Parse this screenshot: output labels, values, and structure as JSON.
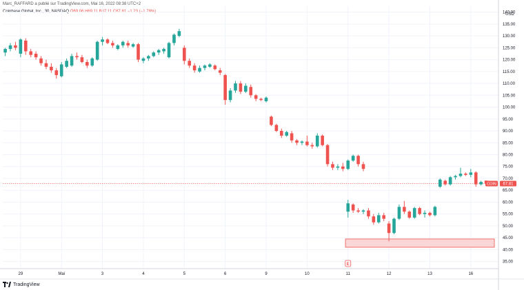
{
  "header": {
    "text": "Marc_RAFFARD a publié sur TradingView.com, Mai 16, 2022 08:38 UTC+2"
  },
  "legend": {
    "symbol": "Coinbase Global, Inc., 30, NASDAQ",
    "values": "O69.06 H69.11 B67.11 C67.81 −1.23 (−1.78%)"
  },
  "footer": {
    "brand": "TradingView"
  },
  "colors": {
    "up": "#26a69a",
    "down": "#ef5350",
    "zone_fill": "#fbd6d6",
    "zone_stroke": "#ef5350",
    "grid": "#f0f3fa"
  },
  "chart_data": {
    "type": "candlestick",
    "currency_label": "USD",
    "y_ticks": [
      35,
      40,
      45,
      50,
      55,
      60,
      65,
      70,
      75,
      80,
      85,
      90,
      95,
      100,
      105,
      110,
      115,
      120,
      125,
      130,
      135,
      140
    ],
    "y_tick_labels": [
      "35.00",
      "40.00",
      "45.00",
      "50.00",
      "55.00",
      "60.00",
      "65.00",
      "70.00",
      "75.00",
      "80.00",
      "85.00",
      "90.00",
      "95.00",
      "100.00",
      "105.00",
      "110.00",
      "115.00",
      "120.00",
      "125.00",
      "130.00",
      "135.00",
      "140.00"
    ],
    "ylim": [
      32,
      142.5
    ],
    "x_ticks": [
      {
        "label": "29",
        "index": 3
      },
      {
        "label": "Mai",
        "index": 11
      },
      {
        "label": "3",
        "index": 19
      },
      {
        "label": "4",
        "index": 27
      },
      {
        "label": "5",
        "index": 35
      },
      {
        "label": "6",
        "index": 43
      },
      {
        "label": "9",
        "index": 51
      },
      {
        "label": "10",
        "index": 59
      },
      {
        "label": "11",
        "index": 67
      },
      {
        "label": "12",
        "index": 75
      },
      {
        "label": "13",
        "index": 83
      },
      {
        "label": "16",
        "index": 91
      }
    ],
    "last_price": {
      "ticker": "COIN",
      "value": "67.81",
      "price": 67.81
    },
    "zone": {
      "low": 41,
      "high": 44.5,
      "from_index": 66.5,
      "to_index": 96
    },
    "event_marker": {
      "label": "E",
      "index": 67
    },
    "candles": [
      {
        "i": 0,
        "o": 123,
        "h": 125,
        "l": 121.5,
        "c": 124.5
      },
      {
        "i": 1,
        "o": 124.5,
        "h": 127,
        "l": 123.5,
        "c": 126
      },
      {
        "i": 2,
        "o": 126,
        "h": 127.5,
        "l": 124,
        "c": 125
      },
      {
        "i": 3,
        "o": 122.5,
        "h": 129,
        "l": 121,
        "c": 128.5
      },
      {
        "i": 4,
        "o": 128,
        "h": 129,
        "l": 122,
        "c": 123.5
      },
      {
        "i": 5,
        "o": 123.5,
        "h": 124.5,
        "l": 121,
        "c": 122
      },
      {
        "i": 6,
        "o": 122.5,
        "h": 123.5,
        "l": 120,
        "c": 121
      },
      {
        "i": 7,
        "o": 120.5,
        "h": 121.5,
        "l": 117.5,
        "c": 118.5
      },
      {
        "i": 8,
        "o": 118.5,
        "h": 120,
        "l": 116,
        "c": 117
      },
      {
        "i": 9,
        "o": 117,
        "h": 118.5,
        "l": 114.5,
        "c": 115.5
      },
      {
        "i": 10,
        "o": 115.5,
        "h": 116.5,
        "l": 112,
        "c": 113.5
      },
      {
        "i": 11,
        "o": 113,
        "h": 119,
        "l": 112.5,
        "c": 118
      },
      {
        "i": 12,
        "o": 117,
        "h": 120.5,
        "l": 116.5,
        "c": 119.5
      },
      {
        "i": 13,
        "o": 117.5,
        "h": 122.5,
        "l": 117,
        "c": 121.5
      },
      {
        "i": 14,
        "o": 121.5,
        "h": 123,
        "l": 120,
        "c": 121
      },
      {
        "i": 15,
        "o": 121,
        "h": 122,
        "l": 118.5,
        "c": 119
      },
      {
        "i": 16,
        "o": 119,
        "h": 120,
        "l": 116.5,
        "c": 117.5
      },
      {
        "i": 17,
        "o": 117.5,
        "h": 121,
        "l": 117,
        "c": 120.5
      },
      {
        "i": 18,
        "o": 120,
        "h": 128,
        "l": 119.5,
        "c": 127.5
      },
      {
        "i": 19,
        "o": 127.5,
        "h": 129.5,
        "l": 126,
        "c": 128.5
      },
      {
        "i": 20,
        "o": 128.5,
        "h": 129,
        "l": 126.5,
        "c": 127
      },
      {
        "i": 21,
        "o": 127,
        "h": 128,
        "l": 125,
        "c": 126
      },
      {
        "i": 22,
        "o": 124.5,
        "h": 126.5,
        "l": 124,
        "c": 126
      },
      {
        "i": 23,
        "o": 126,
        "h": 128,
        "l": 125,
        "c": 127.5
      },
      {
        "i": 24,
        "o": 127,
        "h": 128,
        "l": 125,
        "c": 126
      },
      {
        "i": 25,
        "o": 125.5,
        "h": 127,
        "l": 125,
        "c": 126.5
      },
      {
        "i": 26,
        "o": 126.5,
        "h": 127,
        "l": 119,
        "c": 120
      },
      {
        "i": 27,
        "o": 119.5,
        "h": 121,
        "l": 118.5,
        "c": 120.5
      },
      {
        "i": 28,
        "o": 120.5,
        "h": 122,
        "l": 119.5,
        "c": 121.5
      },
      {
        "i": 29,
        "o": 121.5,
        "h": 123.5,
        "l": 121,
        "c": 123
      },
      {
        "i": 30,
        "o": 123,
        "h": 124.5,
        "l": 122,
        "c": 124
      },
      {
        "i": 31,
        "o": 123.5,
        "h": 125,
        "l": 122.5,
        "c": 124.5
      },
      {
        "i": 32,
        "o": 121,
        "h": 127.5,
        "l": 120.5,
        "c": 127
      },
      {
        "i": 33,
        "o": 127,
        "h": 131,
        "l": 126,
        "c": 130.5
      },
      {
        "i": 34,
        "o": 130,
        "h": 133,
        "l": 129.5,
        "c": 132
      },
      {
        "i": 35,
        "o": 125,
        "h": 126,
        "l": 118,
        "c": 119.5
      },
      {
        "i": 36,
        "o": 119.5,
        "h": 120.5,
        "l": 116.5,
        "c": 117.5
      },
      {
        "i": 37,
        "o": 117.5,
        "h": 118.5,
        "l": 114.5,
        "c": 115.5
      },
      {
        "i": 38,
        "o": 115,
        "h": 117.5,
        "l": 114.5,
        "c": 116.5
      },
      {
        "i": 39,
        "o": 116.5,
        "h": 118,
        "l": 115.5,
        "c": 117.5
      },
      {
        "i": 40,
        "o": 117,
        "h": 118.5,
        "l": 116.5,
        "c": 118
      },
      {
        "i": 41,
        "o": 117.5,
        "h": 118,
        "l": 115.5,
        "c": 116
      },
      {
        "i": 42,
        "o": 115.5,
        "h": 116.5,
        "l": 113.5,
        "c": 114.5
      },
      {
        "i": 43,
        "o": 113.5,
        "h": 114,
        "l": 101,
        "c": 103
      },
      {
        "i": 44,
        "o": 103,
        "h": 108,
        "l": 102,
        "c": 107
      },
      {
        "i": 45,
        "o": 107,
        "h": 111,
        "l": 106,
        "c": 110
      },
      {
        "i": 46,
        "o": 110,
        "h": 111,
        "l": 105.5,
        "c": 106.5
      },
      {
        "i": 47,
        "o": 106.5,
        "h": 110,
        "l": 106,
        "c": 109
      },
      {
        "i": 48,
        "o": 108.5,
        "h": 109.5,
        "l": 104,
        "c": 105
      },
      {
        "i": 49,
        "o": 105,
        "h": 105.5,
        "l": 102.5,
        "c": 103.5
      },
      {
        "i": 50,
        "o": 103.5,
        "h": 104,
        "l": 102.5,
        "c": 103
      },
      {
        "i": 51,
        "o": 102.5,
        "h": 104.5,
        "l": 102,
        "c": 104
      },
      {
        "i": 52,
        "o": 96,
        "h": 96.5,
        "l": 92,
        "c": 92.5
      },
      {
        "i": 53,
        "o": 92.5,
        "h": 93,
        "l": 89.5,
        "c": 90
      },
      {
        "i": 54,
        "o": 90,
        "h": 91,
        "l": 87,
        "c": 88
      },
      {
        "i": 55,
        "o": 88,
        "h": 90,
        "l": 87.5,
        "c": 89.5
      },
      {
        "i": 56,
        "o": 89,
        "h": 90,
        "l": 85,
        "c": 86
      },
      {
        "i": 57,
        "o": 86,
        "h": 86.5,
        "l": 84,
        "c": 85
      },
      {
        "i": 58,
        "o": 85,
        "h": 86,
        "l": 84,
        "c": 85.5
      },
      {
        "i": 59,
        "o": 85.5,
        "h": 88,
        "l": 83.5,
        "c": 84
      },
      {
        "i": 60,
        "o": 84,
        "h": 85,
        "l": 82.5,
        "c": 83.5
      },
      {
        "i": 61,
        "o": 83.5,
        "h": 89,
        "l": 83,
        "c": 88
      },
      {
        "i": 62,
        "o": 88,
        "h": 88.5,
        "l": 83.5,
        "c": 84
      },
      {
        "i": 63,
        "o": 84,
        "h": 84.5,
        "l": 75,
        "c": 76
      },
      {
        "i": 64,
        "o": 76,
        "h": 77,
        "l": 73.5,
        "c": 74.5
      },
      {
        "i": 65,
        "o": 74.5,
        "h": 76,
        "l": 73.5,
        "c": 75
      },
      {
        "i": 66,
        "o": 75,
        "h": 76.5,
        "l": 73,
        "c": 74
      },
      {
        "i": 67,
        "o": 74,
        "h": 78,
        "l": 73.5,
        "c": 77.5
      },
      {
        "i": 68,
        "o": 77.5,
        "h": 80,
        "l": 77,
        "c": 79.5
      },
      {
        "i": 69,
        "o": 79.5,
        "h": 80,
        "l": 75,
        "c": 76
      },
      {
        "i": 70,
        "o": 76,
        "h": 77,
        "l": 73,
        "c": 74
      }
    ],
    "candles_b": [
      {
        "i": 67,
        "o": 56,
        "h": 61,
        "l": 53.5,
        "c": 59.5
      },
      {
        "i": 68,
        "o": 59,
        "h": 59.5,
        "l": 55.5,
        "c": 56.5
      },
      {
        "i": 69,
        "o": 56.5,
        "h": 57.5,
        "l": 55.5,
        "c": 56
      },
      {
        "i": 70,
        "o": 56,
        "h": 57,
        "l": 55,
        "c": 56.5
      },
      {
        "i": 71,
        "o": 56.5,
        "h": 57.5,
        "l": 53,
        "c": 54
      },
      {
        "i": 72,
        "o": 54,
        "h": 55,
        "l": 50.5,
        "c": 51.5
      },
      {
        "i": 73,
        "o": 51.5,
        "h": 55.5,
        "l": 51,
        "c": 54.5
      },
      {
        "i": 74,
        "o": 54.5,
        "h": 55.5,
        "l": 52,
        "c": 53
      },
      {
        "i": 75,
        "o": 51,
        "h": 52,
        "l": 43.5,
        "c": 47
      },
      {
        "i": 76,
        "o": 47,
        "h": 53.5,
        "l": 46.5,
        "c": 53
      },
      {
        "i": 77,
        "o": 53,
        "h": 59,
        "l": 52.5,
        "c": 58
      },
      {
        "i": 78,
        "o": 58,
        "h": 60.5,
        "l": 55,
        "c": 56
      },
      {
        "i": 79,
        "o": 56,
        "h": 56.5,
        "l": 53,
        "c": 53.5
      },
      {
        "i": 80,
        "o": 53.5,
        "h": 58,
        "l": 53,
        "c": 57.5
      },
      {
        "i": 81,
        "o": 57.5,
        "h": 58,
        "l": 54.5,
        "c": 55
      },
      {
        "i": 82,
        "o": 55,
        "h": 56.5,
        "l": 53.5,
        "c": 55.5
      },
      {
        "i": 83,
        "o": 55.5,
        "h": 56,
        "l": 54,
        "c": 54.5
      },
      {
        "i": 84,
        "o": 54.5,
        "h": 58.5,
        "l": 54,
        "c": 58
      },
      {
        "i": 85,
        "o": 66.5,
        "h": 70,
        "l": 66,
        "c": 69.5
      },
      {
        "i": 86,
        "o": 69,
        "h": 69.5,
        "l": 67,
        "c": 67.5
      },
      {
        "i": 87,
        "o": 67.5,
        "h": 71,
        "l": 67,
        "c": 70.5
      },
      {
        "i": 88,
        "o": 70.5,
        "h": 71.5,
        "l": 69.5,
        "c": 71
      },
      {
        "i": 89,
        "o": 71,
        "h": 74.5,
        "l": 70.5,
        "c": 72
      },
      {
        "i": 90,
        "o": 72,
        "h": 72.5,
        "l": 71,
        "c": 71.5
      },
      {
        "i": 91,
        "o": 71.5,
        "h": 74,
        "l": 70.5,
        "c": 72.5
      },
      {
        "i": 92,
        "o": 72.5,
        "h": 73,
        "l": 66.5,
        "c": 67.5
      },
      {
        "i": 93,
        "o": 67.5,
        "h": 69,
        "l": 67,
        "c": 68.5
      },
      {
        "i": 94,
        "o": 69.06,
        "h": 69.11,
        "l": 67.11,
        "c": 67.81
      }
    ]
  }
}
